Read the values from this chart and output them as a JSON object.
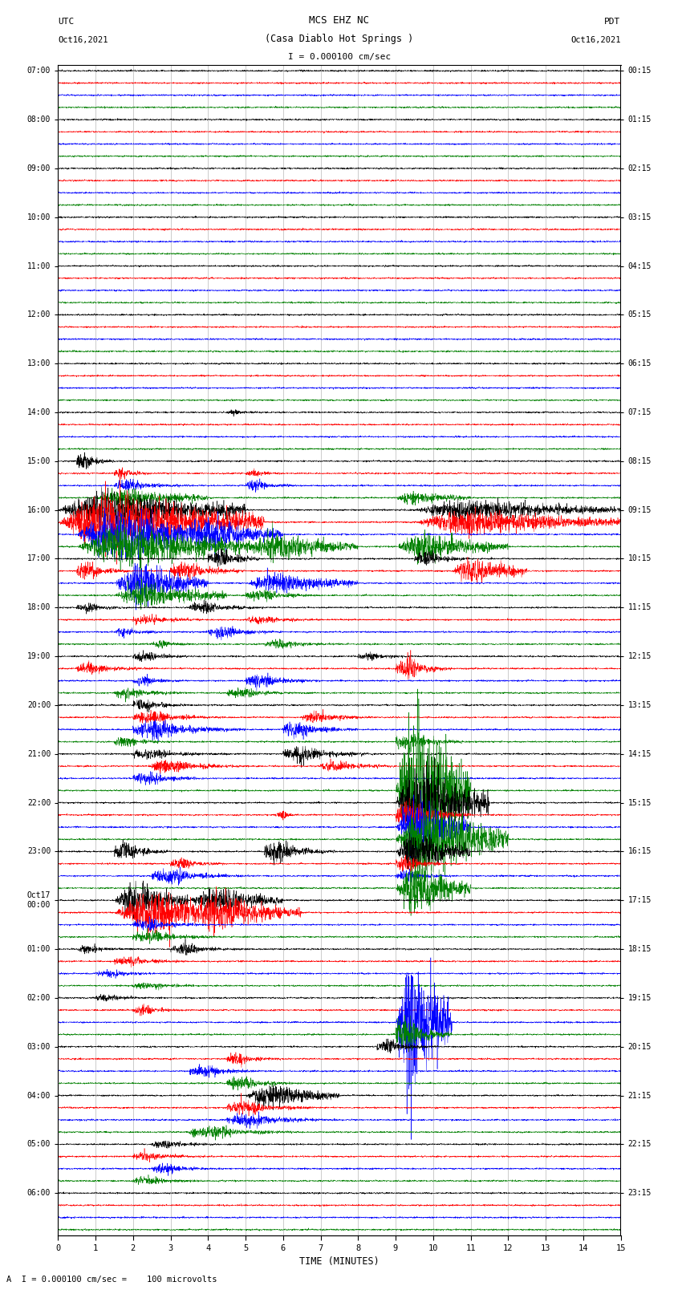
{
  "title_line1": "MCS EHZ NC",
  "title_line2": "(Casa Diablo Hot Springs )",
  "scale_label": "I = 0.000100 cm/sec",
  "bottom_label": "A  I = 0.000100 cm/sec =    100 microvolts",
  "xlabel": "TIME (MINUTES)",
  "utc_labels": [
    [
      "07:00",
      0
    ],
    [
      "08:00",
      4
    ],
    [
      "09:00",
      8
    ],
    [
      "10:00",
      12
    ],
    [
      "11:00",
      16
    ],
    [
      "12:00",
      20
    ],
    [
      "13:00",
      24
    ],
    [
      "14:00",
      28
    ],
    [
      "15:00",
      32
    ],
    [
      "16:00",
      36
    ],
    [
      "17:00",
      40
    ],
    [
      "18:00",
      44
    ],
    [
      "19:00",
      48
    ],
    [
      "20:00",
      52
    ],
    [
      "21:00",
      56
    ],
    [
      "22:00",
      60
    ],
    [
      "23:00",
      64
    ],
    [
      "Oct17\n00:00",
      68
    ],
    [
      "01:00",
      72
    ],
    [
      "02:00",
      76
    ],
    [
      "03:00",
      80
    ],
    [
      "04:00",
      84
    ],
    [
      "05:00",
      88
    ],
    [
      "06:00",
      92
    ]
  ],
  "pdt_labels": [
    [
      "00:15",
      0
    ],
    [
      "01:15",
      4
    ],
    [
      "02:15",
      8
    ],
    [
      "03:15",
      12
    ],
    [
      "04:15",
      16
    ],
    [
      "05:15",
      20
    ],
    [
      "06:15",
      24
    ],
    [
      "07:15",
      28
    ],
    [
      "08:15",
      32
    ],
    [
      "09:15",
      36
    ],
    [
      "10:15",
      40
    ],
    [
      "11:15",
      44
    ],
    [
      "12:15",
      48
    ],
    [
      "13:15",
      52
    ],
    [
      "14:15",
      56
    ],
    [
      "15:15",
      60
    ],
    [
      "16:15",
      64
    ],
    [
      "17:15",
      68
    ],
    [
      "18:15",
      72
    ],
    [
      "19:15",
      76
    ],
    [
      "20:15",
      80
    ],
    [
      "21:15",
      84
    ],
    [
      "22:15",
      88
    ],
    [
      "23:15",
      92
    ]
  ],
  "n_rows": 96,
  "n_minutes": 15,
  "colors_cycle": [
    "black",
    "red",
    "blue",
    "green"
  ],
  "noise_level": 0.03,
  "grid_color": "#888888",
  "font_family": "monospace"
}
